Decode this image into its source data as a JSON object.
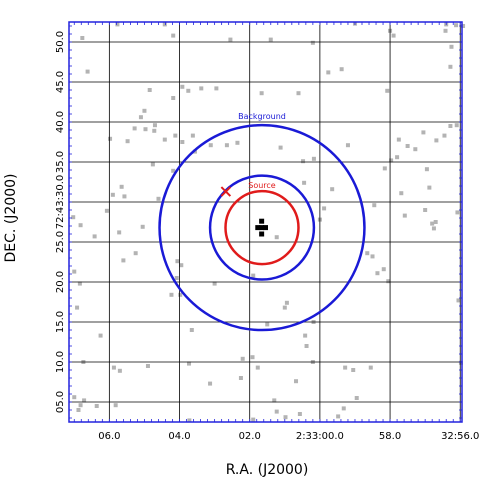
{
  "chart_data": {
    "type": "scatter",
    "xlabel": "R.A. (J2000)",
    "ylabel": "DEC. (J2000)",
    "x_ticks": [
      "06.0",
      "04.0",
      "02.0",
      "2:33:00.0",
      "58.0",
      "32:56.0"
    ],
    "y_ticks": [
      "05.0",
      "10.0",
      "15.0",
      "20.0",
      "25.0",
      "72:43:30.0",
      "35.0",
      "40.0",
      "45.0",
      "50.0"
    ],
    "x_tick_values": [
      6.0,
      4.0,
      2.0,
      0.0,
      -2.0,
      -4.0
    ],
    "y_tick_values": [
      5,
      10,
      15,
      20,
      25,
      30,
      35,
      40,
      45,
      50
    ],
    "xlim": [
      7.15,
      -4.05
    ],
    "ylim": [
      2.5,
      52.5
    ],
    "grid": true,
    "frame_color": "#2222dd",
    "source": {
      "label": "Source",
      "color": "#e01b1b",
      "center": [
        1.65,
        26.8
      ],
      "radius_x": 1.04
    },
    "background": {
      "label": "Background",
      "color": "#1a1ad6",
      "center": [
        1.65,
        26.8
      ],
      "inner_radius_x": 1.48,
      "outer_radius_x": 2.92
    },
    "x_marker": {
      "x": 2.68,
      "y": 31.3,
      "color": "#e01b1b"
    },
    "source_pixels": [
      [
        1.66,
        27.6
      ],
      [
        1.66,
        26.8
      ],
      [
        1.77,
        26.8
      ],
      [
        1.55,
        26.8
      ],
      [
        1.66,
        26.0
      ]
    ],
    "events": [
      [
        6.77,
        50.5
      ],
      [
        5.77,
        52.2
      ],
      [
        4.42,
        52.2
      ],
      [
        4.18,
        50.8
      ],
      [
        2.55,
        50.3
      ],
      [
        1.4,
        50.3
      ],
      [
        0.2,
        49.9
      ],
      [
        -1.0,
        52.3
      ],
      [
        -3.88,
        52.1
      ],
      [
        -3.6,
        52.2
      ],
      [
        -4.08,
        52.0
      ],
      [
        -3.58,
        51.4
      ],
      [
        -3.75,
        49.4
      ],
      [
        -3.72,
        46.9
      ],
      [
        -0.62,
        46.6
      ],
      [
        -0.24,
        46.2
      ],
      [
        -2.0,
        51.4
      ],
      [
        -2.1,
        50.8
      ],
      [
        6.62,
        46.3
      ],
      [
        4.85,
        44.0
      ],
      [
        3.92,
        44.4
      ],
      [
        3.75,
        43.9
      ],
      [
        4.18,
        43.0
      ],
      [
        3.38,
        44.2
      ],
      [
        2.95,
        44.2
      ],
      [
        1.66,
        43.6
      ],
      [
        0.61,
        43.6
      ],
      [
        -1.92,
        43.9
      ],
      [
        5.1,
        40.6
      ],
      [
        5.0,
        41.4
      ],
      [
        4.7,
        39.6
      ],
      [
        4.72,
        38.9
      ],
      [
        5.98,
        37.9
      ],
      [
        5.28,
        39.2
      ],
      [
        4.97,
        39.1
      ],
      [
        5.48,
        37.6
      ],
      [
        4.12,
        38.3
      ],
      [
        4.42,
        37.8
      ],
      [
        3.62,
        38.3
      ],
      [
        3.92,
        37.5
      ],
      [
        3.56,
        36.3
      ],
      [
        3.11,
        37.1
      ],
      [
        2.65,
        37.1
      ],
      [
        2.35,
        37.4
      ],
      [
        1.12,
        36.8
      ],
      [
        0.17,
        35.4
      ],
      [
        0.48,
        35.1
      ],
      [
        -0.8,
        37.1
      ],
      [
        -2.25,
        37.8
      ],
      [
        -2.5,
        37.0
      ],
      [
        -2.72,
        36.6
      ],
      [
        -3.32,
        37.7
      ],
      [
        -3.72,
        39.5
      ],
      [
        -3.9,
        39.6
      ],
      [
        -3.55,
        38.3
      ],
      [
        -2.95,
        38.7
      ],
      [
        4.76,
        34.7
      ],
      [
        4.18,
        33.9
      ],
      [
        -3.05,
        34.1
      ],
      [
        -1.85,
        34.2
      ],
      [
        -2.03,
        35.2
      ],
      [
        -2.2,
        35.6
      ],
      [
        -3.12,
        31.8
      ],
      [
        -2.32,
        31.1
      ],
      [
        5.65,
        31.9
      ],
      [
        5.9,
        30.9
      ],
      [
        6.07,
        28.9
      ],
      [
        5.57,
        30.7
      ],
      [
        6.82,
        27.1
      ],
      [
        7.03,
        28.1
      ],
      [
        4.6,
        30.4
      ],
      [
        0.45,
        32.4
      ],
      [
        -0.35,
        31.6
      ],
      [
        -0.12,
        29.2
      ],
      [
        -1.55,
        29.6
      ],
      [
        -2.42,
        28.3
      ],
      [
        -3.0,
        29.0
      ],
      [
        -3.2,
        27.3
      ],
      [
        -3.25,
        26.7
      ],
      [
        -3.3,
        27.5
      ],
      [
        -3.92,
        28.7
      ],
      [
        5.05,
        26.9
      ],
      [
        5.72,
        26.2
      ],
      [
        6.42,
        25.7
      ],
      [
        5.6,
        22.7
      ],
      [
        5.25,
        23.6
      ],
      [
        4.06,
        22.6
      ],
      [
        3.95,
        22.1
      ],
      [
        1.23,
        25.6
      ],
      [
        0.0,
        27.8
      ],
      [
        -1.35,
        23.6
      ],
      [
        -1.5,
        23.2
      ],
      [
        -1.64,
        21.1
      ],
      [
        -1.82,
        21.6
      ],
      [
        -1.95,
        20.1
      ],
      [
        -3.95,
        17.7
      ],
      [
        7.0,
        21.3
      ],
      [
        6.84,
        19.8
      ],
      [
        6.92,
        16.8
      ],
      [
        4.08,
        20.5
      ],
      [
        4.23,
        18.4
      ],
      [
        3.98,
        18.4
      ],
      [
        3.0,
        19.8
      ],
      [
        1.9,
        20.8
      ],
      [
        0.94,
        17.4
      ],
      [
        1.0,
        16.8
      ],
      [
        1.5,
        14.7
      ],
      [
        0.18,
        15.0
      ],
      [
        3.65,
        14.0
      ],
      [
        0.42,
        13.3
      ],
      [
        6.25,
        13.3
      ],
      [
        6.74,
        10.0
      ],
      [
        5.87,
        9.3
      ],
      [
        5.7,
        8.9
      ],
      [
        4.9,
        9.5
      ],
      [
        2.2,
        10.4
      ],
      [
        0.38,
        12.0
      ],
      [
        1.92,
        10.6
      ],
      [
        0.2,
        10.0
      ],
      [
        -0.72,
        9.3
      ],
      [
        1.77,
        9.3
      ],
      [
        -1.45,
        9.3
      ],
      [
        3.13,
        7.3
      ],
      [
        3.73,
        9.8
      ],
      [
        2.25,
        8.0
      ],
      [
        0.68,
        7.6
      ],
      [
        -0.95,
        9.0
      ],
      [
        7.0,
        5.6
      ],
      [
        6.72,
        5.2
      ],
      [
        6.82,
        4.6
      ],
      [
        6.36,
        4.5
      ],
      [
        5.82,
        4.6
      ],
      [
        6.88,
        4.0
      ],
      [
        1.23,
        3.8
      ],
      [
        1.3,
        5.2
      ],
      [
        -0.68,
        4.2
      ],
      [
        -0.52,
        3.2
      ],
      [
        -1.05,
        5.5
      ],
      [
        1.9,
        2.8
      ],
      [
        0.98,
        3.1
      ],
      [
        0.57,
        3.5
      ],
      [
        3.72,
        2.7
      ],
      [
        -4.02,
        9.9
      ]
    ]
  }
}
